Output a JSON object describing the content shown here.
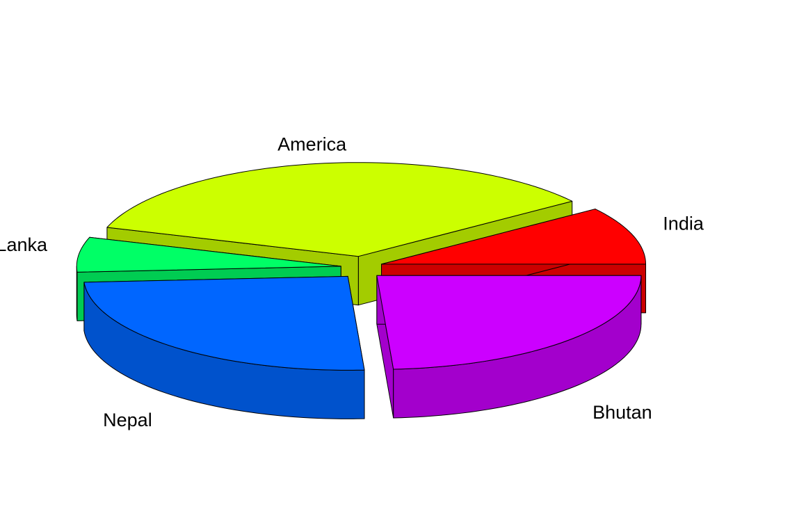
{
  "chart_data": {
    "type": "pie",
    "style": "3d-exploded",
    "title": "",
    "categories": [
      "India",
      "America",
      "Shri Lanka",
      "Nepal",
      "Bhutan"
    ],
    "values": [
      10,
      35,
      6,
      25,
      24
    ],
    "colors": [
      "#ff0000",
      "#ccff00",
      "#00ff66",
      "#0066ff",
      "#cc00ff"
    ],
    "legend": "none"
  }
}
